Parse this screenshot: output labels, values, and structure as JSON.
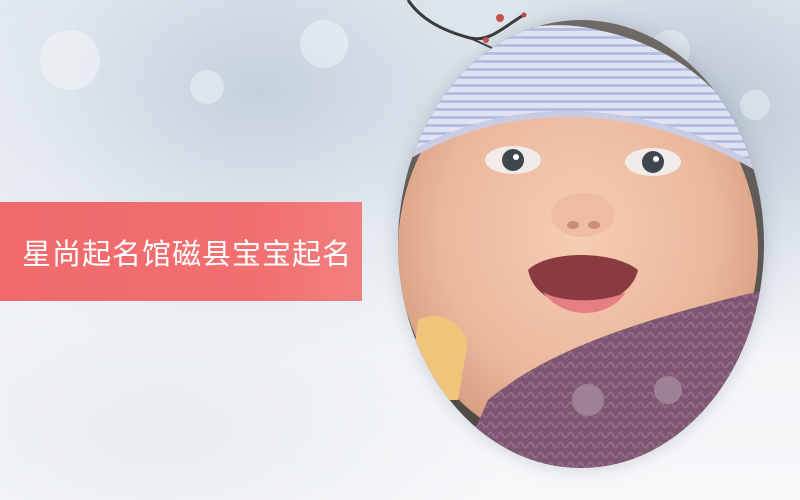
{
  "banner": {
    "title": "星尚起名馆磁县宝宝起名"
  },
  "colors": {
    "banner": "#f06a6c",
    "banner_text": "#ffffff",
    "background": "#e9eef3"
  },
  "image": {
    "subject": "baby-portrait"
  }
}
